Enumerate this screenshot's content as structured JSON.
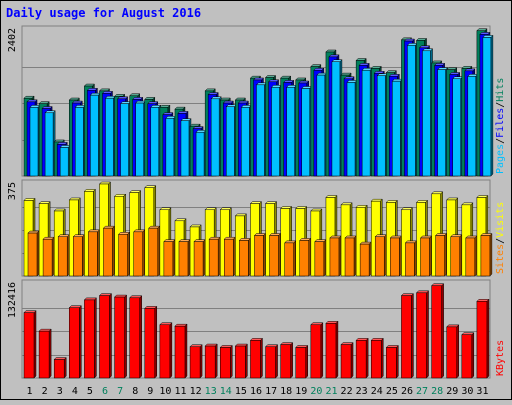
{
  "colors": {
    "background": "#c0c0c0",
    "title": "#0000ff",
    "hits": "#00805c",
    "files": "#0000ff",
    "pages": "#00c0ff",
    "visits": "#ffff00",
    "sites": "#ff8000",
    "kbytes": "#ff0000",
    "weekend_label": "#00805c",
    "weekday_label": "#000000",
    "divider": "#808080"
  },
  "chart_data": {
    "type": "bar",
    "title": "Daily usage for August 2016",
    "x": [
      "1",
      "2",
      "3",
      "4",
      "5",
      "6",
      "7",
      "8",
      "9",
      "10",
      "11",
      "12",
      "13",
      "14",
      "15",
      "16",
      "17",
      "18",
      "19",
      "20",
      "21",
      "22",
      "23",
      "24",
      "25",
      "26",
      "27",
      "28",
      "29",
      "30",
      "31"
    ],
    "weekend_days": [
      "6",
      "7",
      "13",
      "14",
      "20",
      "21",
      "27",
      "28"
    ],
    "panels": [
      {
        "id": "hits-files-pages",
        "ymax_label": "2402",
        "ylim": [
          0,
          2402
        ],
        "legend_labels": [
          "Hits",
          "/",
          "Files",
          "/",
          "Pages"
        ],
        "series": [
          {
            "name": "Hits",
            "values": [
              1280,
              1190,
              560,
              1250,
              1480,
              1400,
              1310,
              1320,
              1260,
              1130,
              1100,
              820,
              1400,
              1250,
              1250,
              1610,
              1620,
              1610,
              1580,
              1800,
              2040,
              1660,
              1900,
              1770,
              1700,
              2240,
              2230,
              1860,
              1750,
              1770,
              2390
            ]
          },
          {
            "name": "Files",
            "values": [
              1220,
              1110,
              520,
              1200,
              1410,
              1360,
              1270,
              1260,
              1190,
              1010,
              1030,
              780,
              1340,
              1200,
              1200,
              1580,
              1550,
              1540,
              1530,
              1740,
              1960,
              1600,
              1820,
              1690,
              1640,
              2220,
              2110,
              1820,
              1670,
              1730,
              2330
            ]
          },
          {
            "name": "Pages",
            "values": [
              1130,
              1040,
              470,
              1130,
              1330,
              1280,
              1190,
              1200,
              1130,
              950,
              910,
              720,
              1270,
              1140,
              1130,
              1500,
              1460,
              1460,
              1440,
              1660,
              1880,
              1540,
              1740,
              1650,
              1560,
              2150,
              2060,
              1750,
              1600,
              1640,
              2280
            ]
          }
        ]
      },
      {
        "id": "visits-sites",
        "ymax_label": "375",
        "ylim": [
          0,
          375
        ],
        "legend_labels": [
          "Visits",
          "/",
          "Sites"
        ],
        "series": [
          {
            "name": "Visits",
            "values": [
              308,
              295,
              265,
              310,
              345,
              375,
              325,
              340,
              360,
              270,
              225,
              200,
              270,
              270,
              245,
              295,
              295,
              275,
              275,
              265,
              320,
              290,
              280,
              305,
              300,
              270,
              300,
              335,
              310,
              290,
              320
            ]
          },
          {
            "name": "Sites",
            "values": [
              175,
              150,
              160,
              160,
              180,
              195,
              170,
              180,
              195,
              140,
              140,
              140,
              150,
              150,
              145,
              165,
              165,
              135,
              145,
              140,
              155,
              155,
              130,
              160,
              155,
              135,
              155,
              165,
              160,
              155,
              165
            ]
          }
        ]
      },
      {
        "id": "kbytes",
        "ymax_label": "132416",
        "ylim": [
          0,
          132416
        ],
        "legend_labels": [
          "KBytes"
        ],
        "series": [
          {
            "name": "KBytes",
            "values": [
              92000,
              66000,
              26000,
              99000,
              110000,
              116000,
              114000,
              113000,
              98000,
              75000,
              73000,
              44000,
              45000,
              43000,
              45000,
              53000,
              44000,
              47000,
              43000,
              75000,
              77000,
              47000,
              53000,
              53000,
              43000,
              116000,
              120000,
              130000,
              72000,
              61000,
              108000
            ]
          }
        ]
      }
    ]
  }
}
